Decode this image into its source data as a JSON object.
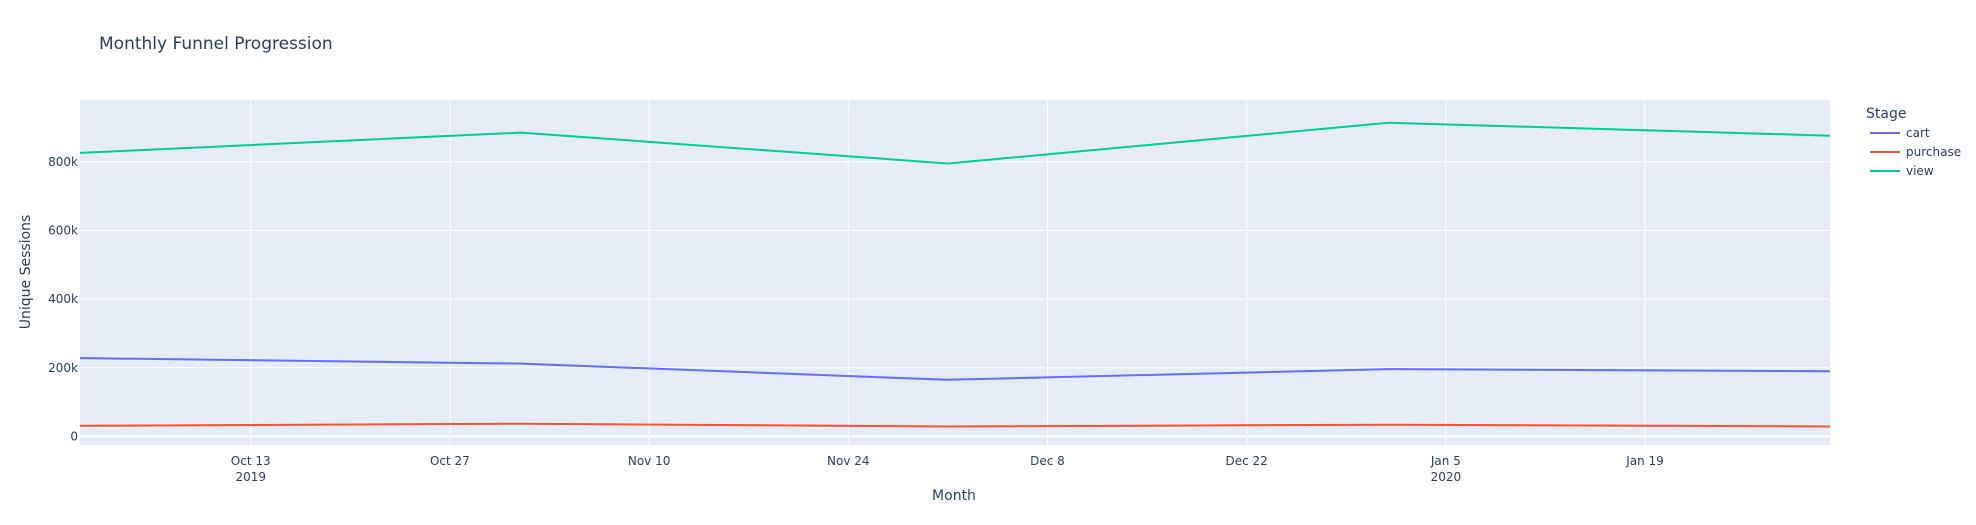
{
  "chart_data": {
    "type": "line",
    "title": "Monthly Funnel Progression",
    "xlabel": "Month",
    "ylabel": "Unique Sessions",
    "x_dates": [
      "2019-10-01",
      "2019-11-01",
      "2019-12-01",
      "2020-01-01",
      "2020-02-01"
    ],
    "x_start": "2019-10-01",
    "x_end": "2020-02-01",
    "x_ticks": [
      {
        "date": "2019-10-13",
        "label": "Oct 13",
        "sub": "2019"
      },
      {
        "date": "2019-10-27",
        "label": "Oct 27",
        "sub": ""
      },
      {
        "date": "2019-11-10",
        "label": "Nov 10",
        "sub": ""
      },
      {
        "date": "2019-11-24",
        "label": "Nov 24",
        "sub": ""
      },
      {
        "date": "2019-12-08",
        "label": "Dec 8",
        "sub": ""
      },
      {
        "date": "2019-12-22",
        "label": "Dec 22",
        "sub": ""
      },
      {
        "date": "2020-01-05",
        "label": "Jan 5",
        "sub": "2020"
      },
      {
        "date": "2020-01-19",
        "label": "Jan 19",
        "sub": ""
      }
    ],
    "ylim": [
      -25000,
      980000
    ],
    "y_ticks": [
      {
        "value": 0,
        "label": "0"
      },
      {
        "value": 200000,
        "label": "200k"
      },
      {
        "value": 400000,
        "label": "400k"
      },
      {
        "value": 600000,
        "label": "600k"
      },
      {
        "value": 800000,
        "label": "800k"
      }
    ],
    "grid": true,
    "legend_title": "Stage",
    "legend_position": "right",
    "series": [
      {
        "name": "cart",
        "color": "#636efa",
        "values": [
          228000,
          212000,
          165000,
          196000,
          190000
        ]
      },
      {
        "name": "purchase",
        "color": "#ef553b",
        "values": [
          31000,
          37000,
          29000,
          34000,
          29000
        ]
      },
      {
        "name": "view",
        "color": "#00cc96",
        "values": [
          826000,
          885000,
          795000,
          914000,
          876000
        ]
      }
    ]
  }
}
